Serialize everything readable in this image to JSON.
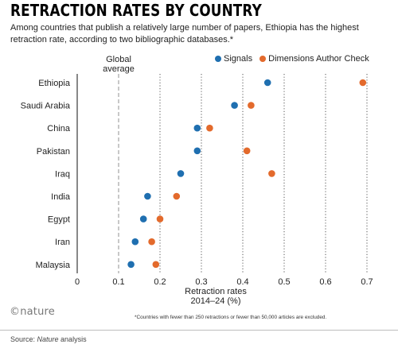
{
  "title": "RETRACTION RATES BY COUNTRY",
  "subtitle": "Among countries that publish a relatively large number of papers, Ethiopia has the highest retraction rate, according to two bibliographic databases.*",
  "brand": "©nature",
  "footnote": "*Countries with fewer than 250 retractions or fewer than 50,000 articles are excluded.",
  "source": {
    "prefix": "Source: ",
    "name": "Nature",
    "suffix": " analysis"
  },
  "colors": {
    "signals": "#1f6fb0",
    "dimensions": "#e36a2c",
    "grid": "#555555",
    "average": "#aaaaaa"
  },
  "chart_data": {
    "type": "scatter",
    "orientation": "horizontal-dot-plot",
    "categories": [
      "Ethiopia",
      "Saudi Arabia",
      "China",
      "Pakistan",
      "Iraq",
      "India",
      "Egypt",
      "Iran",
      "Malaysia"
    ],
    "series": [
      {
        "name": "Signals",
        "values": [
          0.46,
          0.38,
          0.29,
          0.29,
          0.25,
          0.17,
          0.16,
          0.14,
          0.13
        ]
      },
      {
        "name": "Dimensions Author Check",
        "values": [
          0.69,
          0.42,
          0.32,
          0.41,
          0.47,
          0.24,
          0.2,
          0.18,
          0.19
        ]
      }
    ],
    "xlabel": [
      "Retraction rates",
      "2014–24 (%)"
    ],
    "xlim": [
      0,
      0.7
    ],
    "xticks": [
      0,
      0.1,
      0.2,
      0.3,
      0.4,
      0.5,
      0.6,
      0.7
    ],
    "xtick_labels": [
      "0",
      "0.1",
      "0.2",
      "0.3",
      "0.4",
      "0.5",
      "0.6",
      "0.7"
    ],
    "reference_line": {
      "value": 0.1,
      "label": [
        "Global",
        "average"
      ]
    },
    "grid": "vertical dotted",
    "legend_position": "top-right"
  }
}
